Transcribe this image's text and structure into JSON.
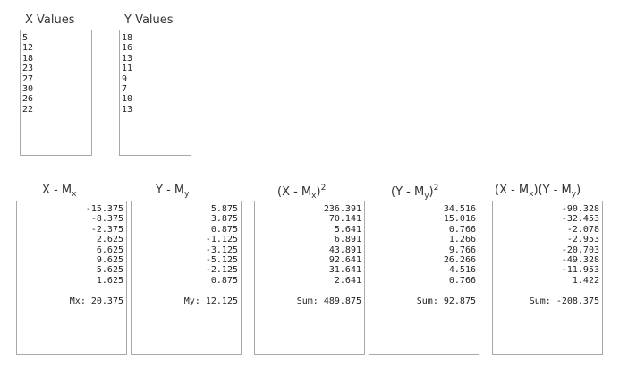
{
  "input_x": {
    "label": "X Values",
    "values": [
      "5",
      "12",
      "18",
      "23",
      "27",
      "30",
      "26",
      "22"
    ]
  },
  "input_y": {
    "label": "Y Values",
    "values": [
      "18",
      "16",
      "13",
      "11",
      "9",
      "7",
      "10",
      "13"
    ]
  },
  "col_x_dev": {
    "label_main": "X - M",
    "label_sub": "x",
    "values": [
      "-15.375",
      "-8.375",
      "-2.375",
      "2.625",
      "6.625",
      "9.625",
      "5.625",
      "1.625"
    ],
    "summary": "Mx: 20.375"
  },
  "col_y_dev": {
    "label_main": "Y - M",
    "label_sub": "y",
    "values": [
      "5.875",
      "3.875",
      "0.875",
      "-1.125",
      "-3.125",
      "-5.125",
      "-2.125",
      "0.875"
    ],
    "summary": "My: 12.125"
  },
  "col_x_sq": {
    "label_a": "(X - M",
    "label_sub": "x",
    "label_b": ")",
    "label_sup": "2",
    "values": [
      "236.391",
      "70.141",
      "5.641",
      "6.891",
      "43.891",
      "92.641",
      "31.641",
      "2.641"
    ],
    "summary": "Sum: 489.875"
  },
  "col_y_sq": {
    "label_a": "(Y - M",
    "label_sub": "y",
    "label_b": ")",
    "label_sup": "2",
    "values": [
      "34.516",
      "15.016",
      "0.766",
      "1.266",
      "9.766",
      "26.266",
      "4.516",
      "0.766"
    ],
    "summary": "Sum: 92.875"
  },
  "col_prod": {
    "label_a": "(X - M",
    "label_sub1": "x",
    "label_b": ")(Y - M",
    "label_sub2": "y",
    "label_c": ")",
    "values": [
      "-90.328",
      "-32.453",
      "-2.078",
      "-2.953",
      "-20.703",
      "-49.328",
      "-11.953",
      "1.422"
    ],
    "summary": "Sum: -208.375"
  }
}
